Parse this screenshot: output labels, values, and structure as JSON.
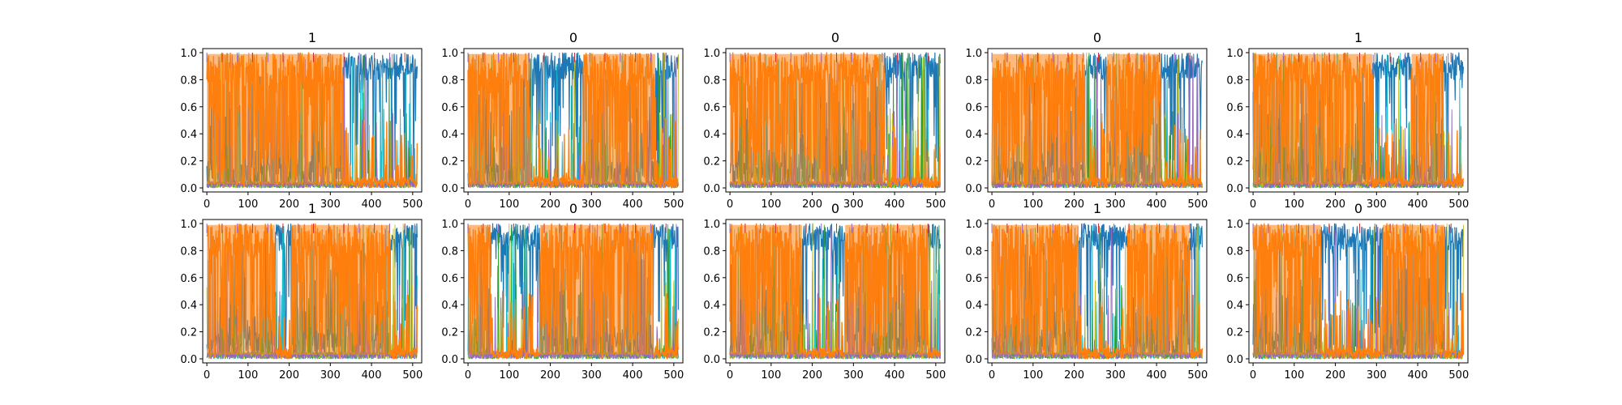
{
  "chart_data": {
    "type": "line",
    "layout": "2 rows x 5 columns of small-multiple line plots",
    "description_of_marks": "each panel overlays many class-probability series over 512 time steps; orange and blue dominate, alternating in blocks",
    "xlim": [
      -10,
      522
    ],
    "ylim": [
      -0.03,
      1.03
    ],
    "xticks": [
      0,
      100,
      200,
      300,
      400,
      500
    ],
    "yticks": [
      0.0,
      0.2,
      0.4,
      0.6,
      0.8,
      1.0
    ],
    "xtick_labels": [
      "0",
      "100",
      "200",
      "300",
      "400",
      "500"
    ],
    "ytick_labels": [
      "0.0",
      "0.2",
      "0.4",
      "0.6",
      "0.8",
      "1.0"
    ],
    "colors": {
      "blue": "#1f77b4",
      "orange": "#ff7f0e",
      "cyan": "#17becf",
      "green": "#2ca02c",
      "olive": "#bcbd22",
      "purple": "#9467bd",
      "red": "#d62728"
    },
    "panels": [
      {
        "title": "1",
        "orange_dominant_ranges": [
          [
            0,
            330
          ]
        ]
      },
      {
        "title": "0",
        "orange_dominant_ranges": [
          [
            0,
            150
          ],
          [
            280,
            455
          ]
        ]
      },
      {
        "title": "0",
        "orange_dominant_ranges": [
          [
            0,
            375
          ]
        ]
      },
      {
        "title": "0",
        "orange_dominant_ranges": [
          [
            0,
            225
          ],
          [
            280,
            410
          ]
        ]
      },
      {
        "title": "1",
        "orange_dominant_ranges": [
          [
            0,
            290
          ],
          [
            385,
            460
          ]
        ]
      },
      {
        "title": "1",
        "orange_dominant_ranges": [
          [
            0,
            165
          ],
          [
            205,
            445
          ]
        ]
      },
      {
        "title": "0",
        "orange_dominant_ranges": [
          [
            0,
            55
          ],
          [
            175,
            450
          ]
        ]
      },
      {
        "title": "0",
        "orange_dominant_ranges": [
          [
            0,
            175
          ],
          [
            280,
            480
          ]
        ]
      },
      {
        "title": "1",
        "orange_dominant_ranges": [
          [
            0,
            210
          ],
          [
            330,
            480
          ]
        ]
      },
      {
        "title": "0",
        "orange_dominant_ranges": [
          [
            0,
            165
          ],
          [
            315,
            465
          ]
        ]
      }
    ]
  }
}
